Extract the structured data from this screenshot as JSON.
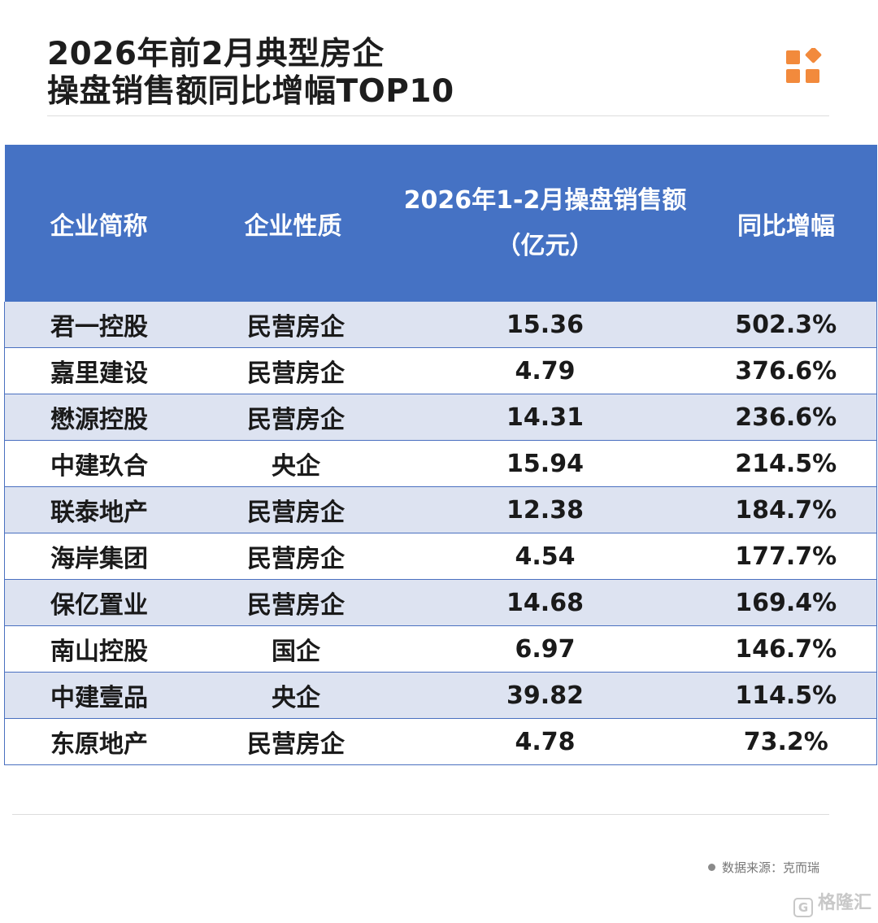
{
  "title": {
    "line1": "2026年前2月典型房企",
    "line2": "操盘销售额同比增幅TOP10"
  },
  "colors": {
    "header_bg": "#4572c4",
    "stripe": "#dde3f1",
    "logo": "#f28a3c"
  },
  "icons": {
    "logo": "orange-blocks-logo-icon"
  },
  "chart_data": {
    "type": "table",
    "columns": [
      "企业简称",
      "企业性质",
      "2026年1-2月操盘销售额",
      "同比增幅"
    ],
    "column_units": {
      "sales": "（亿元）"
    },
    "rows": [
      {
        "name": "君一控股",
        "nature": "民营房企",
        "sales": "15.36",
        "growth": "502.3%"
      },
      {
        "name": "嘉里建设",
        "nature": "民营房企",
        "sales": "4.79",
        "growth": "376.6%"
      },
      {
        "name": "懋源控股",
        "nature": "民营房企",
        "sales": "14.31",
        "growth": "236.6%"
      },
      {
        "name": "中建玖合",
        "nature": "央企",
        "sales": "15.94",
        "growth": "214.5%"
      },
      {
        "name": "联泰地产",
        "nature": "民营房企",
        "sales": "12.38",
        "growth": "184.7%"
      },
      {
        "name": "海岸集团",
        "nature": "民营房企",
        "sales": "4.54",
        "growth": "177.7%"
      },
      {
        "name": "保亿置业",
        "nature": "民营房企",
        "sales": "14.68",
        "growth": "169.4%"
      },
      {
        "name": "南山控股",
        "nature": "国企",
        "sales": "6.97",
        "growth": "146.7%"
      },
      {
        "name": "中建壹品",
        "nature": "央企",
        "sales": "39.82",
        "growth": "114.5%"
      },
      {
        "name": "东原地产",
        "nature": "民营房企",
        "sales": "4.78",
        "growth": "73.2%"
      }
    ]
  },
  "source": "数据来源：克而瑞",
  "brand": "格隆汇"
}
